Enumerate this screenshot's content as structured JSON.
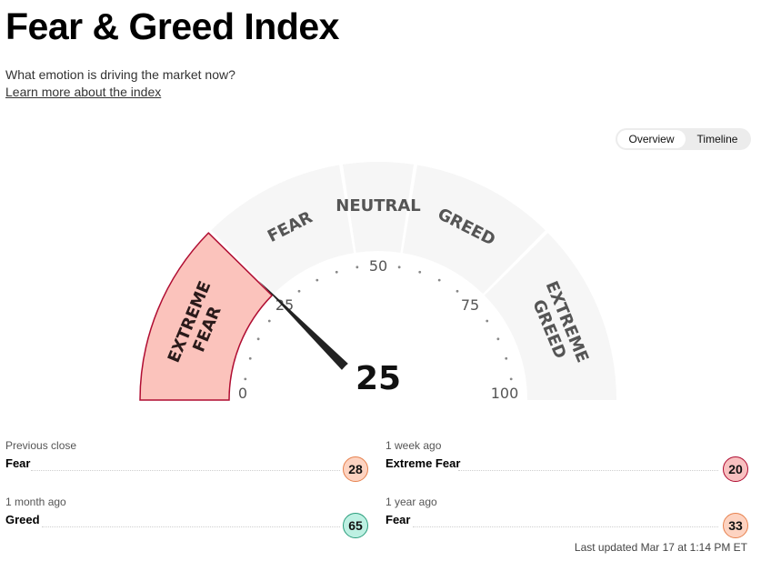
{
  "header": {
    "title": "Fear & Greed Index",
    "subtitle": "What emotion is driving the market now?",
    "learn_more": "Learn more about the index"
  },
  "toggle": {
    "overview": "Overview",
    "timeline": "Timeline",
    "active": "Overview"
  },
  "gauge": {
    "value": "25",
    "value_number": 25,
    "scale": {
      "min": "0",
      "q1": "25",
      "mid": "50",
      "q3": "75",
      "max": "100"
    },
    "segments": [
      {
        "label": "EXTREME FEAR",
        "line1": "EXTREME",
        "line2": "FEAR",
        "range": [
          0,
          25
        ],
        "color": "#fbc3bc",
        "active": true
      },
      {
        "label": "FEAR",
        "range": [
          25,
          45
        ],
        "color": "#f6f6f6",
        "active": false
      },
      {
        "label": "NEUTRAL",
        "range": [
          45,
          55
        ],
        "color": "#f6f6f6",
        "active": false
      },
      {
        "label": "GREED",
        "range": [
          55,
          75
        ],
        "color": "#f6f6f6",
        "active": false
      },
      {
        "label": "EXTREME GREED",
        "line1": "EXTREME",
        "line2": "GREED",
        "range": [
          75,
          100
        ],
        "color": "#f6f6f6",
        "active": false
      }
    ],
    "active_border_color": "#b00d32"
  },
  "history": [
    {
      "label": "Previous close",
      "status": "Fear",
      "value": "28",
      "badge_bg": "#fdd3c1",
      "badge_border": "#e7824f"
    },
    {
      "label": "1 week ago",
      "status": "Extreme Fear",
      "value": "20",
      "badge_bg": "#f8c0c0",
      "badge_border": "#b00d32"
    },
    {
      "label": "1 month ago",
      "status": "Greed",
      "value": "65",
      "badge_bg": "#bdf0e2",
      "badge_border": "#2a9d7c"
    },
    {
      "label": "1 year ago",
      "status": "Fear",
      "value": "33",
      "badge_bg": "#fdd3c1",
      "badge_border": "#e7824f"
    }
  ],
  "last_updated": "Last updated Mar 17 at 1:14 PM ET"
}
